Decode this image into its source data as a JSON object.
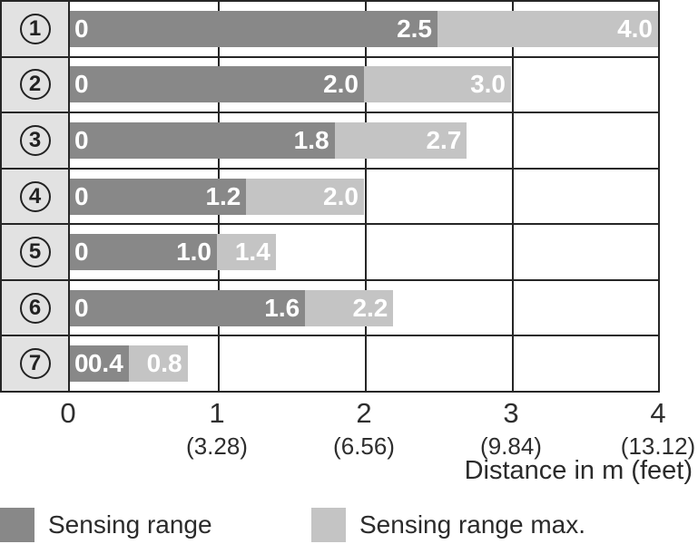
{
  "chart_data": {
    "type": "bar",
    "orientation": "horizontal",
    "title": "",
    "xlabel": "Distance in m (feet)",
    "ylabel": "",
    "xlim": [
      0,
      4
    ],
    "grid": true,
    "legend_position": "bottom",
    "categories": [
      "1",
      "2",
      "3",
      "4",
      "5",
      "6",
      "7"
    ],
    "series": [
      {
        "name": "Sensing range",
        "color": "#888888",
        "values": [
          2.5,
          2.0,
          1.8,
          1.2,
          1.0,
          1.6,
          0.4
        ]
      },
      {
        "name": "Sensing range max.",
        "color": "#c4c4c4",
        "values": [
          4.0,
          3.0,
          2.7,
          2.0,
          1.4,
          2.2,
          0.8
        ]
      }
    ],
    "rows": [
      {
        "num": "1",
        "zero_label": "0",
        "sensing": 2.5,
        "sensing_label": "2.5",
        "max": 4.0,
        "max_label": "4.0"
      },
      {
        "num": "2",
        "zero_label": "0",
        "sensing": 2.0,
        "sensing_label": "2.0",
        "max": 3.0,
        "max_label": "3.0"
      },
      {
        "num": "3",
        "zero_label": "0",
        "sensing": 1.8,
        "sensing_label": "1.8",
        "max": 2.7,
        "max_label": "2.7"
      },
      {
        "num": "4",
        "zero_label": "0",
        "sensing": 1.2,
        "sensing_label": "1.2",
        "max": 2.0,
        "max_label": "2.0"
      },
      {
        "num": "5",
        "zero_label": "0",
        "sensing": 1.0,
        "sensing_label": "1.0",
        "max": 1.4,
        "max_label": "1.4"
      },
      {
        "num": "6",
        "zero_label": "0",
        "sensing": 1.6,
        "sensing_label": "1.6",
        "max": 2.2,
        "max_label": "2.2"
      },
      {
        "num": "7",
        "zero_label": "0",
        "sensing": 0.4,
        "sensing_label": "0.4",
        "max": 0.8,
        "max_label": "0.8"
      }
    ],
    "x_ticks": [
      {
        "m": "0",
        "feet": ""
      },
      {
        "m": "1",
        "feet": "(3.28)"
      },
      {
        "m": "2",
        "feet": "(6.56)"
      },
      {
        "m": "3",
        "feet": "(9.84)"
      },
      {
        "m": "4",
        "feet": "(13.12)"
      }
    ],
    "legend": [
      {
        "label": "Sensing range",
        "color": "#888888"
      },
      {
        "label": "Sensing range max.",
        "color": "#c4c4c4"
      }
    ]
  },
  "colors": {
    "bar_dark": "#888888",
    "bar_light": "#c4c4c4",
    "row_label_bg": "#e2e2e2",
    "grid_line": "#262626",
    "axis_text": "#2e2e2e",
    "value_text": "#ffffff"
  }
}
